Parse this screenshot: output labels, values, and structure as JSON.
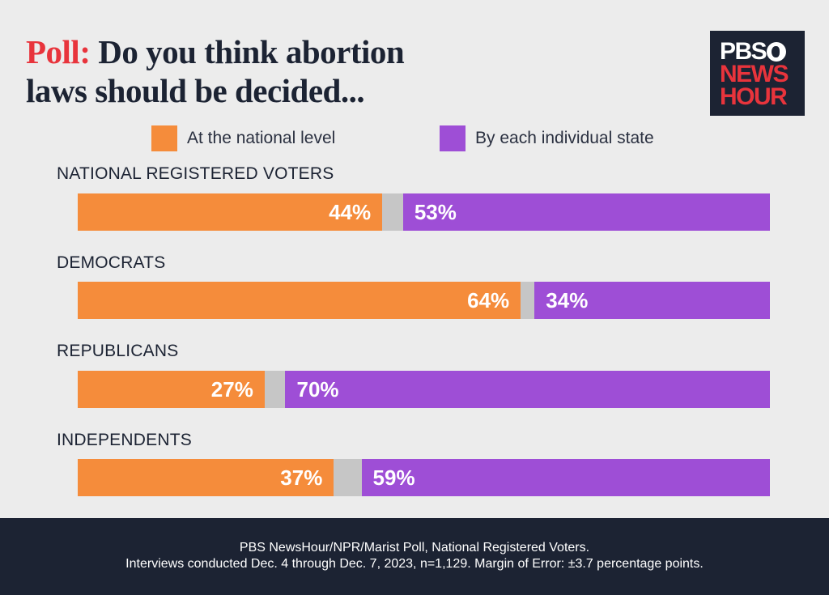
{
  "title": {
    "prefix": "Poll:",
    "line1": "Do you think abortion",
    "line2": "laws should be decided..."
  },
  "logo": {
    "line1": "PBS",
    "line2": "NEWS",
    "line3": "HOUR"
  },
  "colors": {
    "national": "#f58c3b",
    "state": "#9e4ed6",
    "other": "#c6c6c6",
    "title_accent": "#e8343c",
    "dark": "#1c2333"
  },
  "chart_data": {
    "type": "bar",
    "orientation": "horizontal-stacked",
    "title": "Poll: Do you think abortion laws should be decided...",
    "categories": [
      "NATIONAL REGISTERED VOTERS",
      "DEMOCRATS",
      "REPUBLICANS",
      "INDEPENDENTS"
    ],
    "series": [
      {
        "name": "At the national level",
        "values": [
          44,
          64,
          27,
          37
        ],
        "labels": [
          "44%",
          "64%",
          "27%",
          "37%"
        ]
      },
      {
        "name": "By each individual state",
        "values": [
          53,
          34,
          70,
          59
        ],
        "labels": [
          "53%",
          "34%",
          "70%",
          "59%"
        ]
      }
    ],
    "unlabeled_remainder": [
      3,
      2,
      3,
      4
    ],
    "xlim": [
      0,
      100
    ],
    "legend": "top"
  },
  "footer": {
    "line1": "PBS NewsHour/NPR/Marist Poll, National Registered Voters.",
    "line2": "Interviews conducted Dec. 4 through Dec. 7, 2023, n=1,129. Margin of Error: ±3.7 percentage points."
  }
}
